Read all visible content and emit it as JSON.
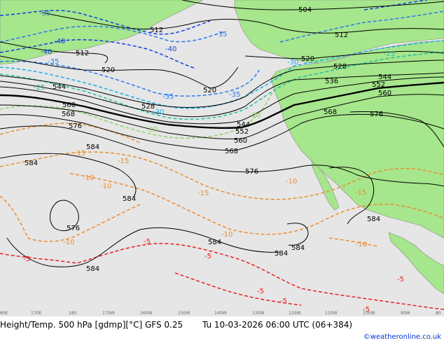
{
  "product_title": "Height/Temp. 500 hPa [gdmp][°C] GFS 0.25",
  "valid_time": "Tu 10-03-2026 06:00 UTC (06+384)",
  "credit": "©weatheronline.co.uk",
  "longitude_labels": [
    "60E",
    "170E",
    "180",
    "170W",
    "160W",
    "150W",
    "140W",
    "130W",
    "120W",
    "110W",
    "100W",
    "90W",
    "80"
  ],
  "height_labels_gdmp": [
    "504",
    "512",
    "512",
    "512",
    "520",
    "520",
    "520",
    "528",
    "528",
    "536",
    "544",
    "544",
    "544",
    "552",
    "552",
    "560",
    "560",
    "560",
    "568",
    "568",
    "568",
    "576",
    "576",
    "576",
    "576",
    "584",
    "584",
    "584",
    "584",
    "584",
    "584",
    "584",
    "584"
  ],
  "temperature_labels_c": [
    "-40",
    "-40",
    "-40",
    "-35",
    "-35",
    "-35",
    "-35",
    "-35",
    "-30",
    "-30",
    "-25",
    "-25",
    "-20",
    "-20",
    "-15",
    "-15",
    "-15",
    "-15",
    "-10",
    "-10",
    "-10",
    "-10",
    "-10",
    "-10",
    "-5",
    "-5",
    "-5",
    "-5",
    "-5",
    "-5",
    "-5"
  ],
  "colors": {
    "ocean": "#e6e6e6",
    "land": "#a6e68c",
    "height_contour": "#000000",
    "t_minus40": "#1040e0",
    "t_minus35": "#2a78f0",
    "t_minus30": "#18b0e8",
    "t_minus25": "#20c0a0",
    "t_minus20": "#8ed36a",
    "t_minus15": "#e89030",
    "t_minus10": "#ee8c30",
    "t_minus5": "#e82020",
    "credit_text": "#0033cc"
  }
}
